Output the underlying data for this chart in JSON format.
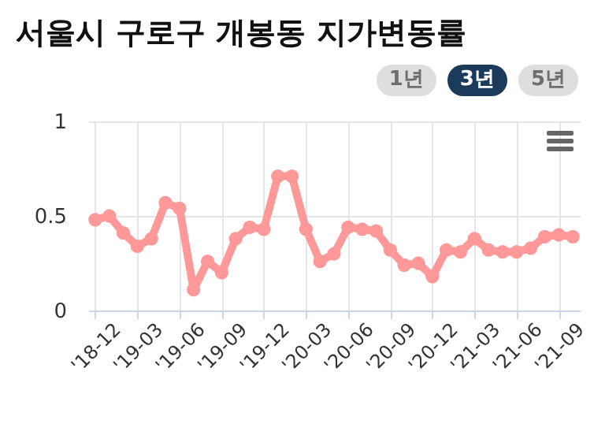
{
  "chart_data": {
    "type": "line",
    "title": "서울시 구로구 개봉동 지가변동률",
    "annotations": [
      "1년",
      "3년",
      "5년"
    ],
    "categories": [
      "'18-12",
      null,
      null,
      "'19-03",
      null,
      null,
      "'19-06",
      null,
      null,
      "'19-09",
      null,
      null,
      "'19-12",
      null,
      null,
      "'20-03",
      null,
      null,
      "'20-06",
      null,
      null,
      "'20-09",
      null,
      null,
      "'20-12",
      null,
      null,
      "'21-03",
      null,
      null,
      "'21-06",
      null,
      null,
      "'21-09",
      null
    ],
    "series": [
      {
        "color": "#ff9999",
        "values": [
          0.48,
          0.5,
          0.41,
          0.34,
          0.38,
          0.57,
          0.54,
          0.11,
          0.26,
          0.2,
          0.38,
          0.44,
          0.43,
          0.71,
          0.71,
          0.43,
          0.26,
          0.3,
          0.44,
          0.43,
          0.42,
          0.32,
          0.24,
          0.25,
          0.18,
          0.32,
          0.31,
          0.38,
          0.32,
          0.31,
          0.31,
          0.33,
          0.39,
          0.4,
          0.39
        ]
      }
    ],
    "ylim": [
      0,
      1
    ],
    "yticks": [
      {
        "value": 0,
        "label": "0"
      },
      0.5,
      {
        "value": 1,
        "label": "1"
      }
    ],
    "grid": true,
    "marker": "circle"
  }
}
